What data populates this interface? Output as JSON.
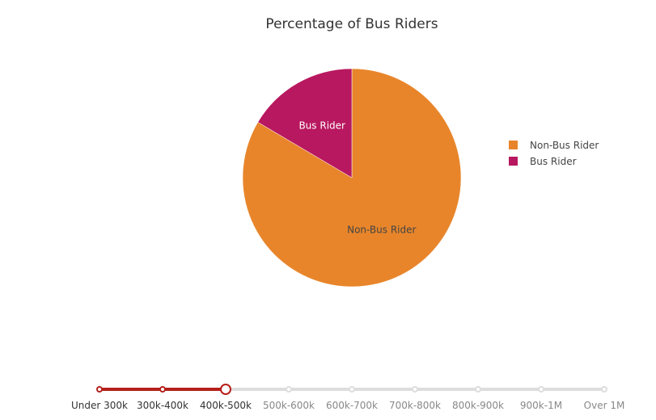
{
  "chart_data": {
    "type": "pie",
    "title": "Percentage of Bus Riders",
    "slices": [
      {
        "label": "Non-Bus Rider",
        "value": 83.5,
        "color": "#e8852a",
        "label_color": "#444444"
      },
      {
        "label": "Bus Rider",
        "value": 16.5,
        "color": "#b8185f",
        "label_color": "#ffffff"
      }
    ],
    "legend": {
      "placement": "right",
      "entries": [
        {
          "label": "Non-Bus Rider",
          "color": "#e8852a"
        },
        {
          "label": "Bus Rider",
          "color": "#b8185f"
        }
      ]
    }
  },
  "slider": {
    "steps": [
      "Under 300k",
      "300k-400k",
      "400k-500k",
      "500k-600k",
      "600k-700k",
      "700k-800k",
      "800k-900k",
      "900k-1M",
      "Over 1M"
    ],
    "selected_index": 2,
    "active_color": "#b5201a",
    "inactive_color": "#dddddd"
  }
}
